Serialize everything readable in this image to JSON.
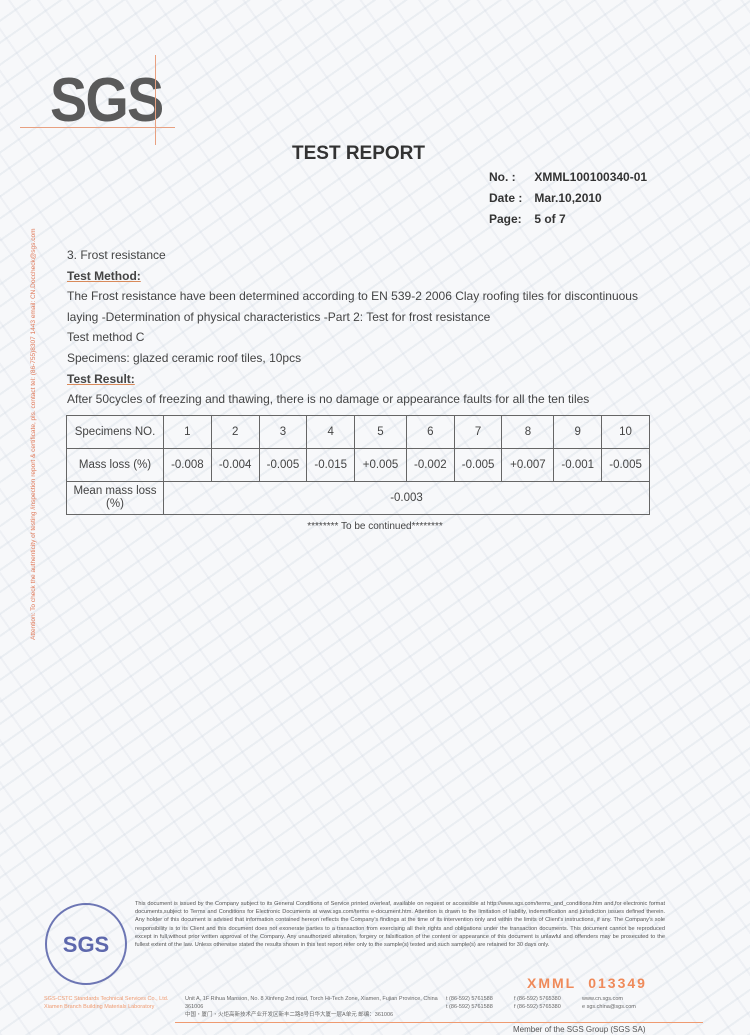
{
  "logo": "SGS",
  "title": "TEST REPORT",
  "meta": [
    {
      "label": "No. :",
      "value": "XMML100100340-01"
    },
    {
      "label": "Date :",
      "value": "Mar.10,2010"
    },
    {
      "label": "Page:",
      "value": "5 of 7"
    }
  ],
  "side_note": "Attention: To check the authenticity of testing /inspection report & certificate, pls. contact tel: (86-755)8307 1443 email: CN.Doccheck@sgs.com",
  "section": "3. Frost resistance",
  "method_heading": "Test Method:",
  "method_lines": [
    "The Frost resistance have been determined according to EN 539-2 2006 Clay roofing tiles for discontinuous",
    "laying -Determination of physical characteristics -Part 2: Test for frost resistance",
    "Test method C",
    "Specimens: glazed ceramic roof tiles, 10pcs"
  ],
  "result_heading": "Test Result:",
  "result_text": "After 50cycles of freezing and thawing, there is no damage or appearance faults for all the ten tiles",
  "table": {
    "row_headers": [
      "Specimens NO.",
      "Mass loss (%)",
      "Mean mass loss (%)"
    ],
    "specimens": [
      "1",
      "2",
      "3",
      "4",
      "5",
      "6",
      "7",
      "8",
      "9",
      "10"
    ],
    "mass_loss": [
      "-0.008",
      "-0.004",
      "-0.005",
      "-0.015",
      "+0.005",
      "-0.002",
      "-0.005",
      "+0.007",
      "-0.001",
      "-0.005"
    ],
    "mean": "-0.003"
  },
  "continued": "******** To be continued********",
  "legal": "This document is issued by the Company subject to its General Conditions of Service printed overleaf, available on request or accessible at http://www.sgs.com/terms_and_conditions.htm and,for electronic format documents,subject to Terms and Conditions for Electronic Documents at www.sgs.com/terms e-document.htm. Attention is drawn to the limitation of liability, indemnification and jurisdiction issues defined therein. Any holder of this document is advised that information contained hereon reflects the Company's findings at the time of its intervention only and within the limits of Client's instructions, if any. The Company's sole responsibility is to its Client and this document does not exonerate parties to a transaction from exercising all their rights and obligations under the transaction documents. This document cannot be reproduced except in full,without prior written approval of the Company. Any unauthorized alteration, forgery or falsification of the content or appearance of this document is unlawful and offenders may be prosecuted to the fullest extent of the law. Unless otherwise stated the results shown in this test report refer only to the sample(s) tested and such sample(s) are retained for 30 days only.",
  "stamp": "SGS",
  "serial_prefix": "XMML",
  "serial_number": "013349",
  "company": [
    "SGS-CSTC Standards Technical Services Co., Ltd.",
    "Xiamen Branch Building Materials Laboratory"
  ],
  "address": [
    "Unit A, 1F Rihua Mansion, No. 8 Xinfeng 2nd road, Torch Hi-Tech Zone, Xiamen, Fujian Province, China 361006",
    "中国・厦门・火炬高新技术产业开发区新丰二路8号日华大厦一层A单元 邮编：361006"
  ],
  "tel": [
    "t (86-592) 5761588",
    "t (86-592) 5761588"
  ],
  "fax": [
    "f (86-592) 5765380",
    "f (86-592) 5765380"
  ],
  "web": [
    "www.cn.sgs.com",
    "e sgs.china@sgs.com"
  ],
  "member": "Member of the SGS Group (SGS SA)"
}
